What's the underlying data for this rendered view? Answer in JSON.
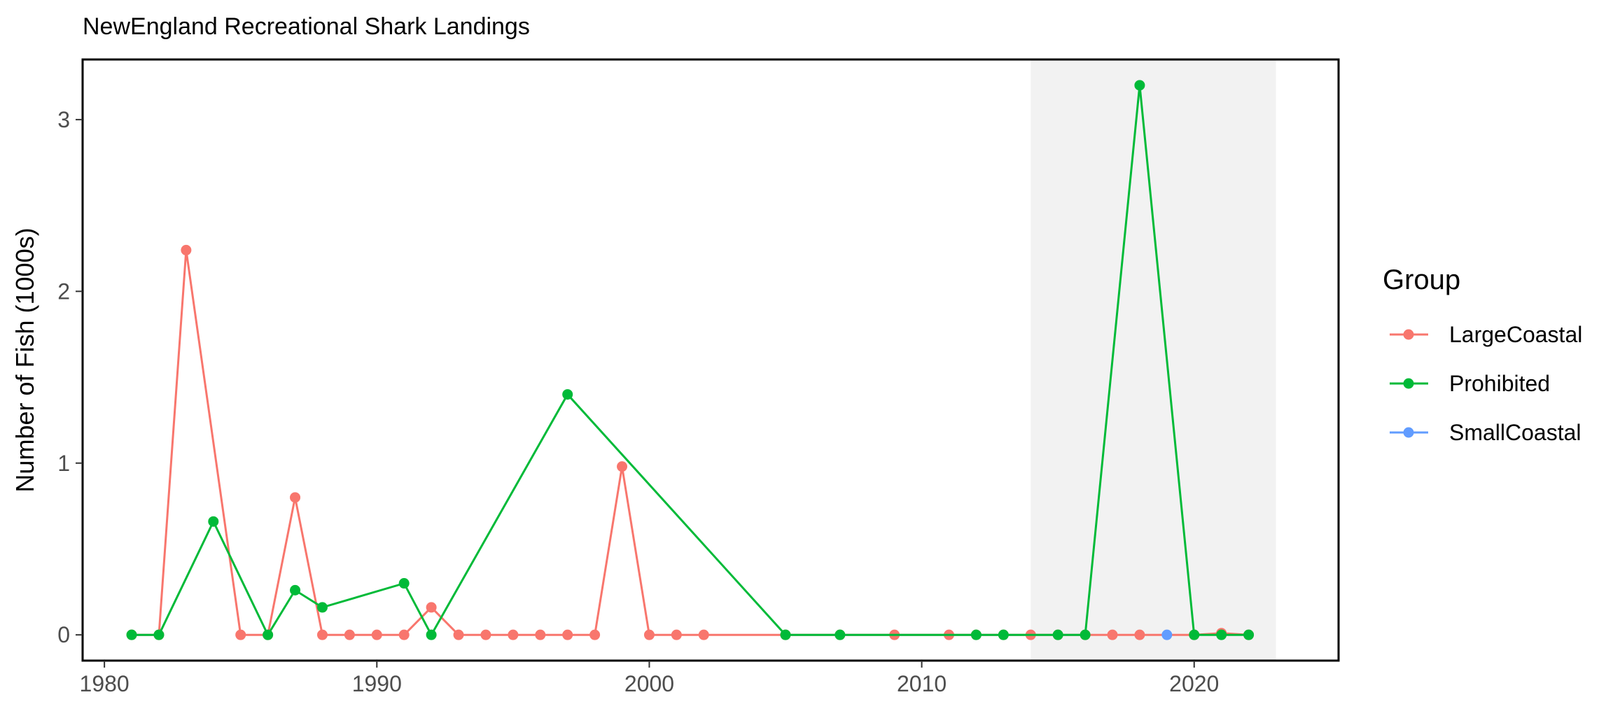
{
  "chart_data": {
    "type": "line",
    "title": "NewEngland Recreational Shark Landings",
    "xlabel": "",
    "ylabel": "Number of Fish (1000s)",
    "xlim": [
      1979.2,
      2025.3
    ],
    "ylim": [
      -0.15,
      3.35
    ],
    "xticks": [
      1980,
      1990,
      2000,
      2010,
      2020
    ],
    "yticks": [
      0,
      1,
      2,
      3
    ],
    "grid": false,
    "shaded_region": {
      "x_start": 2014,
      "x_end": 2023,
      "color": "#f2f2f2"
    },
    "legend": {
      "title": "Group",
      "placement": "right"
    },
    "series": [
      {
        "name": "LargeCoastal",
        "color": "#F8766D",
        "x": [
          1981,
          1982,
          1983,
          1985,
          1986,
          1987,
          1988,
          1989,
          1990,
          1991,
          1992,
          1993,
          1994,
          1995,
          1996,
          1997,
          1998,
          1999,
          2000,
          2001,
          2002,
          2005,
          2007,
          2009,
          2011,
          2012,
          2013,
          2014,
          2015,
          2016,
          2017,
          2018,
          2020,
          2021,
          2022
        ],
        "y": [
          0,
          0,
          2.24,
          0,
          0,
          0.8,
          0,
          0,
          0,
          0,
          0.16,
          0,
          0,
          0,
          0,
          0,
          0,
          0.98,
          0,
          0,
          0,
          0,
          0,
          0,
          0,
          0,
          0,
          0,
          0,
          0,
          0,
          0,
          0,
          0.01,
          0
        ]
      },
      {
        "name": "Prohibited",
        "color": "#00BA38",
        "x": [
          1981,
          1982,
          1984,
          1986,
          1987,
          1988,
          1991,
          1992,
          1997,
          2005,
          2007,
          2012,
          2013,
          2015,
          2016,
          2018,
          2020,
          2021,
          2022
        ],
        "y": [
          0,
          0,
          0.66,
          0,
          0.26,
          0.16,
          0.3,
          0,
          1.4,
          0,
          0,
          0,
          0,
          0,
          0,
          3.2,
          0,
          0,
          0
        ]
      },
      {
        "name": "SmallCoastal",
        "color": "#619CFF",
        "x": [
          2019
        ],
        "y": [
          0
        ]
      }
    ]
  }
}
